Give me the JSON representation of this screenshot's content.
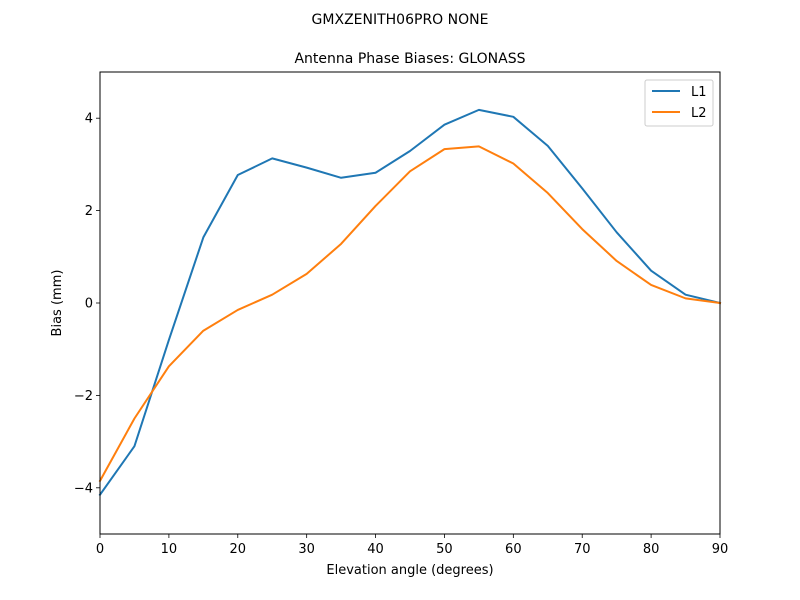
{
  "suptitle": "GMXZENITH06PRO  NONE",
  "chart_data": {
    "type": "line",
    "title": "Antenna Phase Biases: GLONASS",
    "xlabel": "Elevation angle (degrees)",
    "ylabel": "Bias (mm)",
    "xlim": [
      0,
      90
    ],
    "ylim": [
      -5,
      5
    ],
    "xticks": [
      0,
      10,
      20,
      30,
      40,
      50,
      60,
      70,
      80,
      90
    ],
    "yticks": [
      -4,
      -2,
      0,
      2,
      4
    ],
    "xtick_labels": [
      "0",
      "10",
      "20",
      "30",
      "40",
      "50",
      "60",
      "70",
      "80",
      "90"
    ],
    "ytick_labels": [
      "−4",
      "−2",
      "0",
      "2",
      "4"
    ],
    "legend_position": "top-right",
    "grid": false,
    "x": [
      0,
      5,
      10,
      15,
      20,
      25,
      30,
      35,
      40,
      45,
      50,
      55,
      60,
      65,
      70,
      75,
      80,
      85,
      90
    ],
    "series": [
      {
        "name": "L1",
        "color": "#1f77b4",
        "values": [
          -4.15,
          -3.1,
          -0.8,
          1.42,
          2.77,
          3.13,
          2.93,
          2.71,
          2.82,
          3.29,
          3.86,
          4.18,
          4.03,
          3.4,
          2.48,
          1.53,
          0.7,
          0.18,
          0.0
        ]
      },
      {
        "name": "L2",
        "color": "#ff7f0e",
        "values": [
          -3.85,
          -2.5,
          -1.37,
          -0.6,
          -0.15,
          0.18,
          0.63,
          1.28,
          2.1,
          2.85,
          3.33,
          3.39,
          3.02,
          2.38,
          1.6,
          0.91,
          0.39,
          0.1,
          0.0
        ]
      }
    ]
  }
}
